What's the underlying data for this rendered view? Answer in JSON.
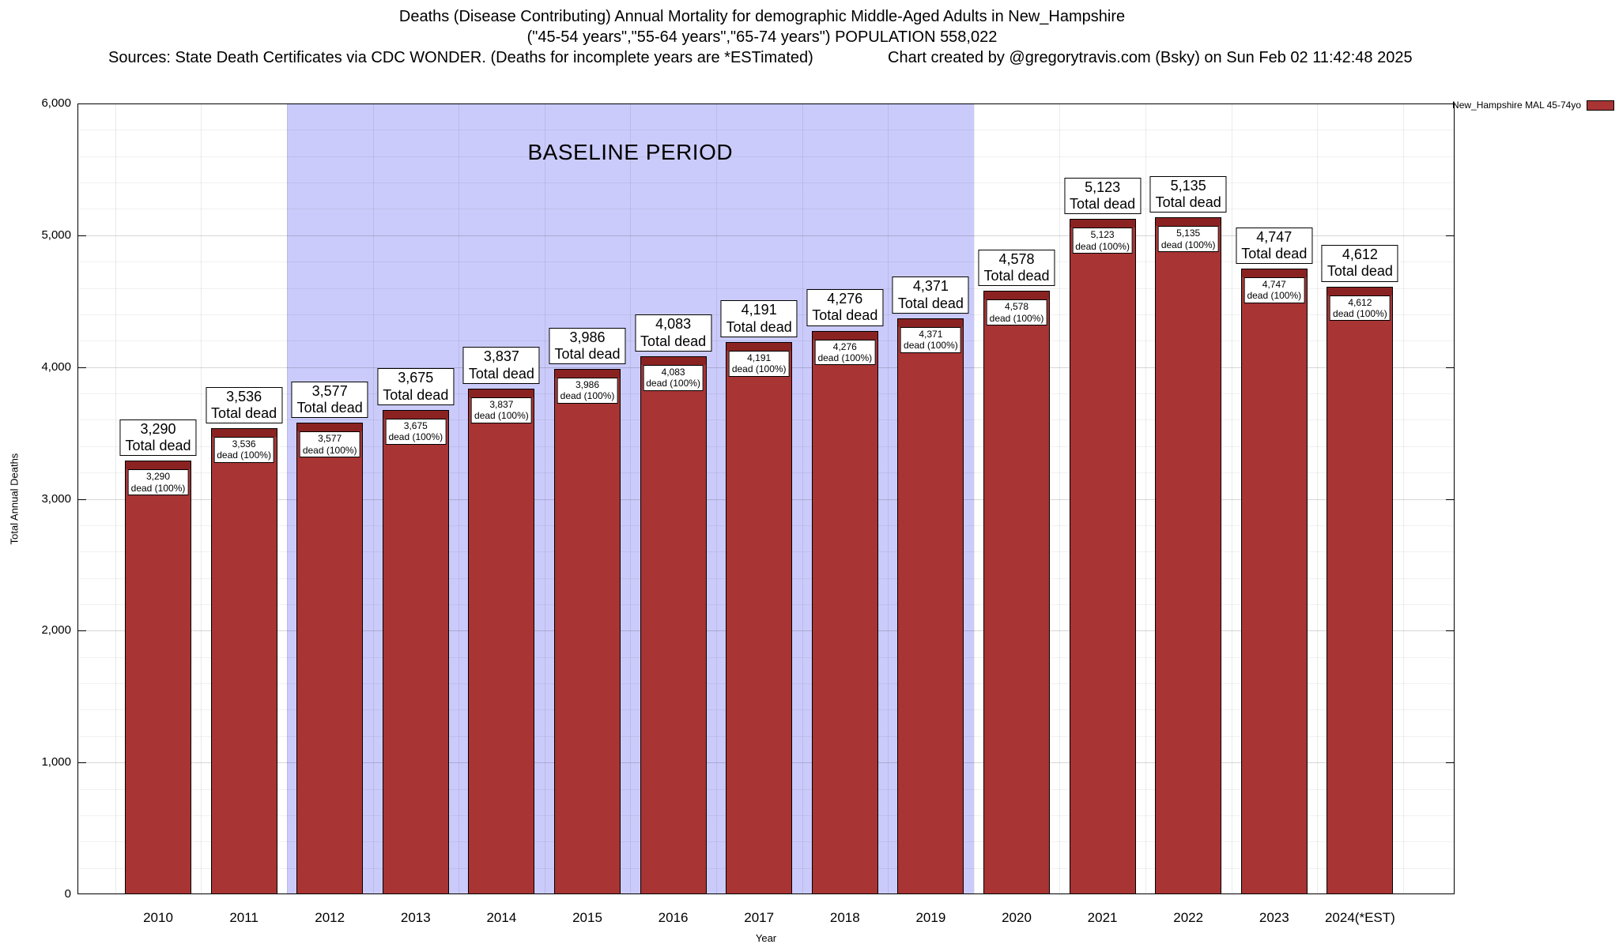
{
  "header": {
    "title": "Deaths (Disease Contributing) Annual Mortality for demographic Middle-Aged Adults in New_Hampshire",
    "subtitle": "(\"45-54 years\",\"55-64 years\",\"65-74 years\") POPULATION 558,022",
    "sources": "Sources: State Death Certificates via CDC WONDER. (Deaths for incomplete years are *ESTimated)",
    "credit": "Chart created by @gregorytravis.com (Bsky) on Sun Feb 02 11:42:48 2025"
  },
  "chart_data": {
    "type": "bar",
    "title": "Deaths (Disease Contributing) Annual Mortality for demographic Middle-Aged Adults in New_Hampshire",
    "xlabel": "Year",
    "ylabel": "Total Annual Deaths",
    "ylim": [
      0,
      6000
    ],
    "ytick_step": 1000,
    "minor_ytick_step": 200,
    "grid": true,
    "legend_position": "top-right",
    "categories": [
      "2010",
      "2011",
      "2012",
      "2013",
      "2014",
      "2015",
      "2016",
      "2017",
      "2018",
      "2019",
      "2020",
      "2021",
      "2022",
      "2023",
      "2024(*EST)"
    ],
    "series": [
      {
        "name": "New_Hampshire MAL 45-74yo",
        "values": [
          3290,
          3536,
          3577,
          3675,
          3837,
          3986,
          4083,
          4191,
          4276,
          4371,
          4578,
          5123,
          5135,
          4747,
          4612
        ]
      }
    ],
    "bar_color": "#a83434",
    "bar_cap_color": "#8b2222",
    "bar_label_top_suffix": "Total dead",
    "bar_label_inner_suffix": "dead (100%)",
    "baseline": {
      "label": "BASELINE PERIOD",
      "start_category": "2012",
      "end_category": "2019",
      "color": "#cbcbfb"
    }
  }
}
